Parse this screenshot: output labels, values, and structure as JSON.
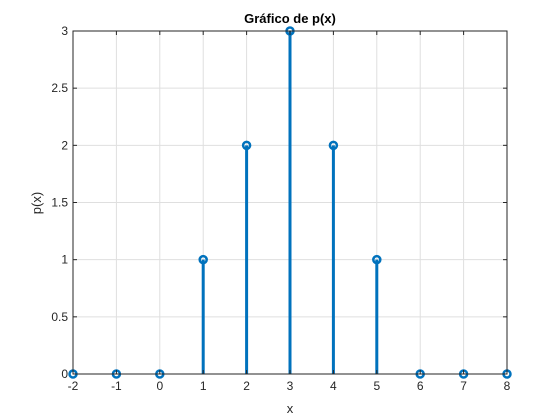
{
  "chart_data": {
    "type": "stem",
    "title": "Gráfico de p(x)",
    "xlabel": "x",
    "ylabel": "p(x)",
    "xlim": [
      -2,
      8
    ],
    "ylim": [
      0,
      3
    ],
    "xticks": [
      "-2",
      "-1",
      "0",
      "1",
      "2",
      "3",
      "4",
      "5",
      "6",
      "7",
      "8"
    ],
    "yticks": [
      "0",
      "0.5",
      "1",
      "1.5",
      "2",
      "2.5",
      "3"
    ],
    "grid": true,
    "series": [
      {
        "x": [
          -2,
          -1,
          0,
          1,
          2,
          3,
          4,
          5,
          6,
          7,
          8
        ],
        "values": [
          0,
          0,
          0,
          1,
          2,
          3,
          2,
          1,
          0,
          0,
          0
        ],
        "color": "#0072BD",
        "marker": "circle-open"
      }
    ]
  }
}
